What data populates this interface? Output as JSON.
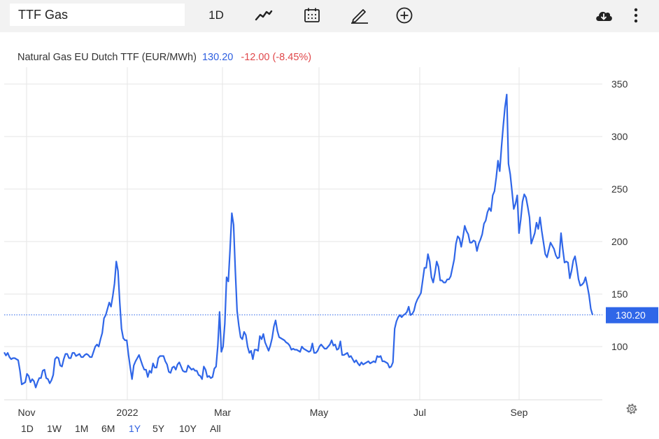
{
  "toolbar": {
    "symbol": "TTF Gas",
    "interval": "1D",
    "icons": [
      "line-chart-icon",
      "calendar-icon",
      "pencil-icon",
      "plus-circle-icon",
      "cloud-download-icon",
      "more-vertical-icon"
    ]
  },
  "header": {
    "name": "Natural Gas EU Dutch TTF (EUR/MWh)",
    "last": "130.20",
    "change": "-12.00 (-8.45%)"
  },
  "colors": {
    "line": "#2f66e8",
    "last_label_bg": "#2f66e8",
    "grid": "#e6e6e6",
    "change_negative": "#e0484b"
  },
  "range_buttons": [
    "1D",
    "1W",
    "1M",
    "6M",
    "1Y",
    "5Y",
    "10Y",
    "All"
  ],
  "active_range": "1Y",
  "chart_data": {
    "type": "line",
    "x_tick_labels": [
      "Nov",
      "2022",
      "Mar",
      "May",
      "Jul",
      "Sep"
    ],
    "y_tick_labels": [
      "100",
      "150",
      "200",
      "250",
      "300",
      "350"
    ],
    "ylim": [
      50,
      375
    ],
    "last_value_label": "130.20",
    "series": [
      {
        "values": [
          94.5,
          91.5,
          94,
          90,
          88,
          89,
          89,
          88,
          87,
          77,
          64,
          65,
          66,
          74,
          72,
          66,
          69,
          67,
          61,
          66,
          70,
          70,
          77,
          78,
          70,
          69,
          65,
          68,
          73,
          88,
          90,
          89,
          82,
          81,
          88,
          93,
          93,
          89,
          89,
          94,
          94,
          91,
          92,
          93,
          90,
          90,
          92,
          93,
          92,
          90,
          90,
          95,
          100,
          102,
          100,
          107,
          113,
          127,
          130,
          136,
          142,
          138,
          148,
          160,
          181,
          172,
          142,
          117,
          108,
          106,
          106,
          92,
          80,
          69,
          82,
          86,
          89,
          92,
          87,
          82,
          78,
          78,
          71,
          77,
          75,
          84,
          80,
          80,
          89,
          91,
          91,
          91,
          86,
          83,
          76,
          75,
          80,
          81,
          78,
          83,
          85,
          81,
          77,
          76,
          76,
          82,
          80,
          78,
          79,
          77,
          77,
          73,
          72,
          69,
          81,
          78,
          71,
          72,
          70,
          71,
          79,
          81,
          101,
          133,
          95,
          100,
          122,
          166,
          162,
          193,
          227,
          216,
          172,
          134,
          120,
          109,
          107,
          114,
          111,
          100,
          94,
          96,
          88,
          97,
          97,
          96,
          110,
          107,
          112,
          104,
          100,
          96,
          101,
          108,
          119,
          125,
          115,
          109,
          108,
          107,
          106,
          104,
          103,
          101,
          97,
          98,
          97,
          97,
          96,
          95,
          100,
          98,
          97,
          96,
          95,
          96,
          103,
          94,
          94,
          96,
          100,
          102,
          100,
          98,
          98,
          100,
          102,
          106,
          101,
          102,
          97,
          98,
          105,
          92,
          92,
          93,
          94,
          90,
          91,
          88,
          85,
          87,
          84,
          82,
          85,
          83,
          84,
          85,
          86,
          84,
          85,
          86,
          85,
          91,
          90,
          91,
          86,
          86,
          85,
          84,
          80,
          81,
          85,
          117,
          124,
          128,
          130,
          128,
          130,
          131,
          133,
          138,
          130,
          131,
          134,
          141,
          145,
          148,
          151,
          163,
          175,
          175,
          188,
          181,
          166,
          161,
          170,
          181,
          176,
          163,
          163,
          161,
          161,
          164,
          164,
          167,
          175,
          183,
          198,
          205,
          203,
          195,
          204,
          215,
          210,
          207,
          199,
          199,
          201,
          200,
          191,
          198,
          202,
          207,
          217,
          220,
          228,
          232,
          229,
          244,
          248,
          261,
          277,
          267,
          290,
          310,
          328,
          340,
          274,
          264,
          248,
          231,
          236,
          244,
          208,
          221,
          238,
          245,
          242,
          233,
          223,
          198,
          203,
          208,
          218,
          212,
          223,
          210,
          199,
          188,
          185,
          192,
          199,
          196,
          193,
          187,
          184,
          185,
          208,
          193,
          180,
          181,
          180,
          165,
          172,
          182,
          186,
          176,
          164,
          158,
          159,
          161,
          166,
          158,
          149,
          136,
          130.2
        ]
      }
    ]
  }
}
